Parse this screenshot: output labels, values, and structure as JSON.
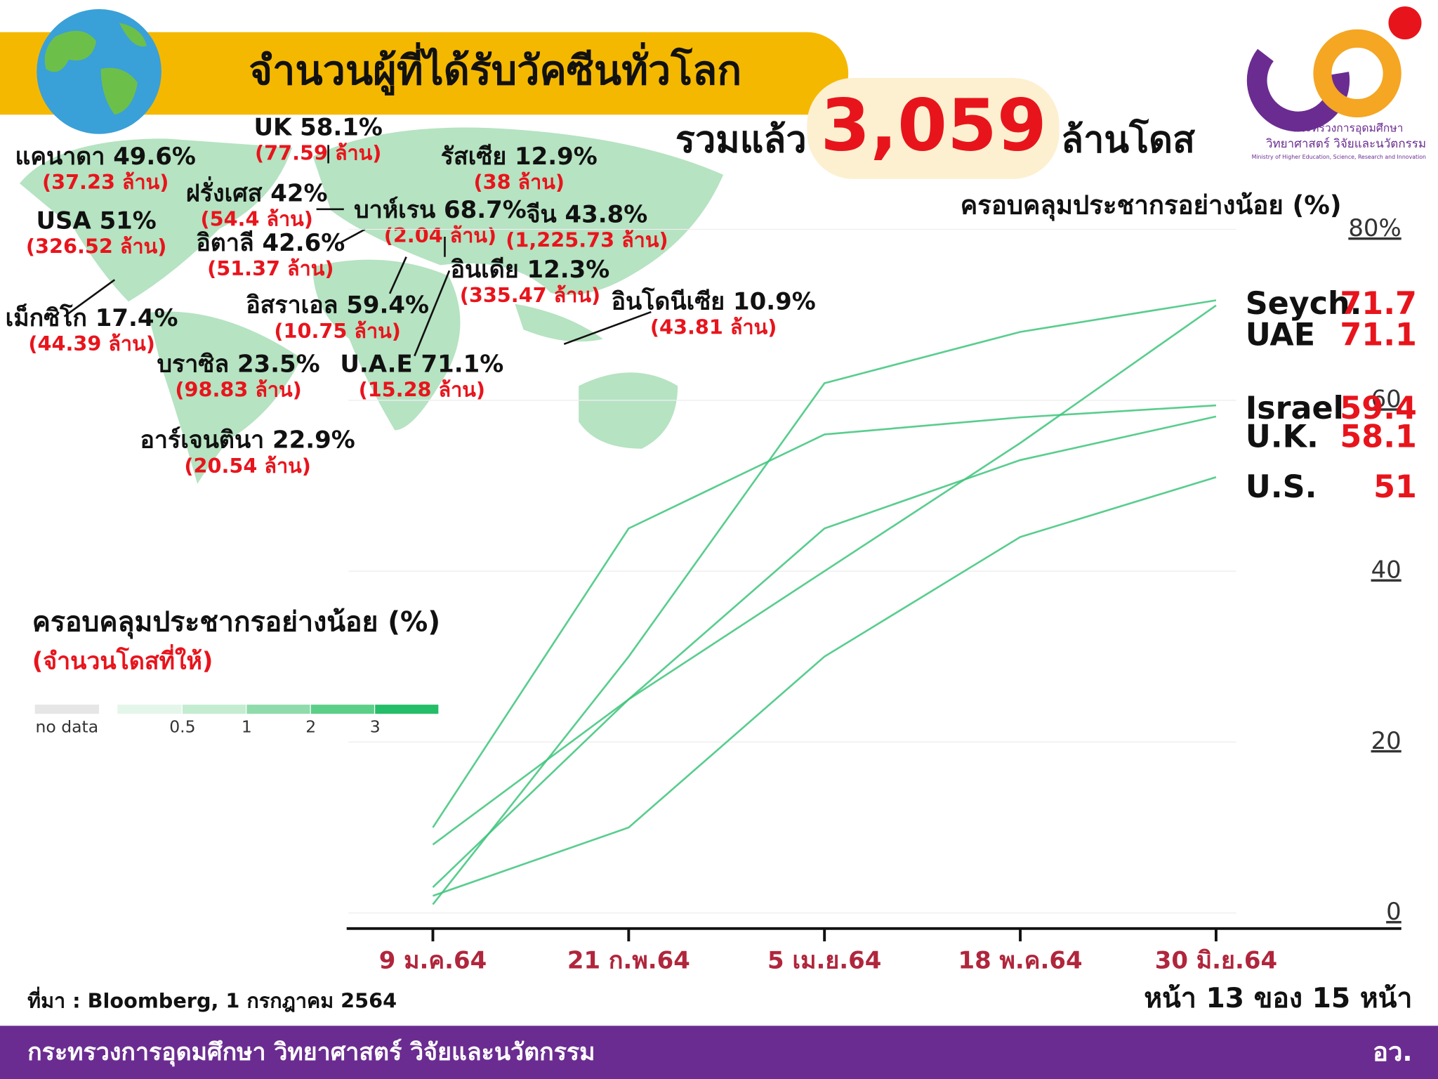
{
  "header": {
    "title": "จำนวนผู้ที่ได้รับวัคซีนทั่วโลก",
    "total_prefix": "รวมแล้ว",
    "total": "3,059",
    "total_suffix": "ล้านโดส"
  },
  "logo": {
    "line1": "กระทรวงการอุดมศึกษา",
    "line2": "วิทยาศาสตร์ วิจัยและนวัตกรรม",
    "line3": "Ministry of Higher Education, Science, Research and Innovation"
  },
  "map": {
    "labels": [
      {
        "name": "UK 58.1%",
        "doses": "(77.59 ล้าน)"
      },
      {
        "name": "แคนาดา 49.6%",
        "doses": "(37.23 ล้าน)"
      },
      {
        "name": "รัสเซีย 12.9%",
        "doses": "(38 ล้าน)"
      },
      {
        "name": "ฝรั่งเศส 42%",
        "doses": "(54.4 ล้าน)"
      },
      {
        "name": "บาห์เรน 68.7%",
        "doses": "(2.04 ล้าน)"
      },
      {
        "name": "จีน 43.8%",
        "doses": "(1,225.73 ล้าน)"
      },
      {
        "name": "USA 51%",
        "doses": "(326.52 ล้าน)"
      },
      {
        "name": "อิตาลี 42.6%",
        "doses": "(51.37 ล้าน)"
      },
      {
        "name": "อินเดีย 12.3%",
        "doses": "(335.47 ล้าน)"
      },
      {
        "name": "อิสราเอล 59.4%",
        "doses": "(10.75 ล้าน)"
      },
      {
        "name": "อินโดนีเซีย 10.9%",
        "doses": "(43.81 ล้าน)"
      },
      {
        "name": "เม็กซิโก 17.4%",
        "doses": "(44.39 ล้าน)"
      },
      {
        "name": "บราซิล 23.5%",
        "doses": "(98.83 ล้าน)"
      },
      {
        "name": "U.A.E 71.1%",
        "doses": "(15.28 ล้าน)"
      },
      {
        "name": "อาร์เจนตินา 22.9%",
        "doses": "(20.54 ล้าน)"
      }
    ],
    "legend_title": "ครอบคลุมประชากรอย่างน้อย (%)",
    "legend_subtitle": "(จำนวนโดสที่ให้)",
    "legend_scale": [
      "no data",
      "0.5",
      "1",
      "2",
      "3"
    ]
  },
  "chart_data": {
    "type": "line",
    "title": "ครอบคลุมประชากรอย่างน้อย (%)",
    "categories": [
      "9 ม.ค.64",
      "21 ก.พ.64",
      "5 เม.ย.64",
      "18 พ.ค.64",
      "30 มิ.ย.64"
    ],
    "series": [
      {
        "name": "Seych.",
        "color": "#3cc47a",
        "values": [
          1,
          30,
          62,
          68,
          71.7
        ]
      },
      {
        "name": "UAE",
        "color": "#3cc47a",
        "values": [
          8,
          25,
          40,
          55,
          71.1
        ]
      },
      {
        "name": "Israel",
        "color": "#3cc47a",
        "values": [
          10,
          45,
          56,
          58,
          59.4
        ]
      },
      {
        "name": "U.K.",
        "color": "#3cc47a",
        "values": [
          3,
          25,
          45,
          53,
          58.1
        ]
      },
      {
        "name": "U.S.",
        "color": "#3cc47a",
        "values": [
          2,
          10,
          30,
          44,
          51
        ]
      }
    ],
    "ylim": [
      0,
      80
    ],
    "yticks": [
      0,
      20,
      40,
      60,
      {
        "value": 80,
        "label": "80%"
      }
    ],
    "grid": true
  },
  "footer": {
    "source": "ที่มา : Bloomberg, 1 กรกฎาคม 2564",
    "page": "หน้า 13 ของ 15 หน้า",
    "ministry": "กระทรวงการอุดมศึกษา วิทยาศาสตร์ วิจัยและนวัตกรรม",
    "short": "อว."
  }
}
